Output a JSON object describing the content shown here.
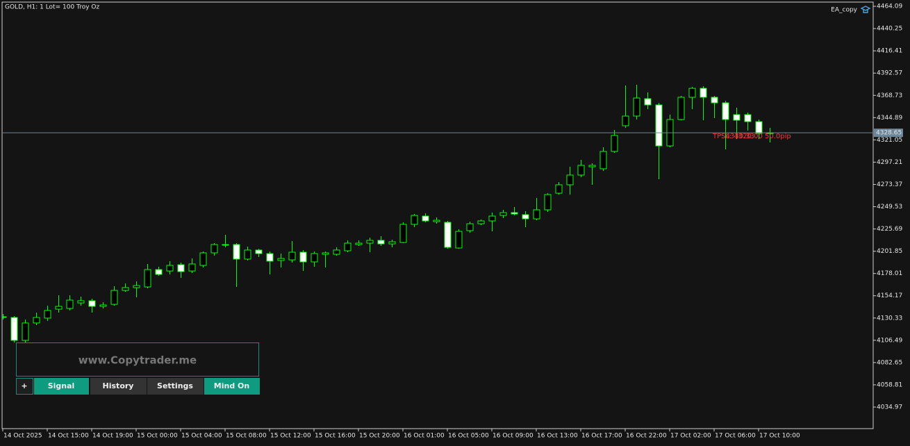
{
  "chart_data": {
    "type": "candlestick",
    "title": "GOLD, H1:  1 Lot= 100 Troy Oz",
    "indicator": "EA_copy",
    "categories": [
      "14 Oct 2025",
      null,
      null,
      null,
      "14 Oct 15:00",
      null,
      null,
      null,
      "14 Oct 19:00",
      null,
      null,
      null,
      "15 Oct 00:00",
      null,
      null,
      null,
      "15 Oct 04:00",
      null,
      null,
      null,
      "15 Oct 08:00",
      null,
      null,
      null,
      "15 Oct 12:00",
      null,
      null,
      null,
      "15 Oct 16:00",
      null,
      null,
      null,
      "15 Oct 20:00",
      null,
      null,
      null,
      "16 Oct 01:00",
      null,
      null,
      null,
      "16 Oct 05:00",
      null,
      null,
      null,
      "16 Oct 09:00",
      null,
      null,
      null,
      "16 Oct 13:00",
      null,
      null,
      null,
      "16 Oct 17:00",
      null,
      null,
      null,
      "16 Oct 22:00",
      null,
      null,
      null,
      "17 Oct 02:00",
      null,
      null,
      null,
      "17 Oct 06:00",
      null,
      null,
      null,
      "17 Oct 10:00",
      null
    ],
    "open": [
      4131.7,
      4130.9,
      4106.4,
      4125.0,
      4130.2,
      4139.8,
      4140.6,
      4146.5,
      4148.8,
      4142.8,
      4145.0,
      4159.9,
      4162.9,
      4163.6,
      4182.2,
      4180.7,
      4187.4,
      4180.7,
      4186.7,
      4200.1,
      4208.3,
      4209.0,
      4193.4,
      4203.1,
      4199.3,
      4191.9,
      4192.6,
      4200.8,
      4190.4,
      4198.6,
      4198.6,
      4202.3,
      4209.0,
      4210.5,
      4213.5,
      4209.7,
      4211.2,
      4230.6,
      4239.5,
      4233.5,
      4232.8,
      4205.3,
      4223.9,
      4231.3,
      4234.3,
      4240.2,
      4243.2,
      4241.0,
      4236.5,
      4246.2,
      4264.0,
      4273.0,
      4283.4,
      4292.3,
      4290.1,
      4308.7,
      4336.2,
      4346.6,
      4365.2,
      4358.5,
      4314.6,
      4342.9,
      4366.7,
      4376.3,
      4366.7,
      4360.7,
      4348.1,
      4348.1,
      4340.6,
      4328.0
    ],
    "high": [
      4134.6,
      4132.4,
      4128.7,
      4136.1,
      4143.6,
      4154.7,
      4154.7,
      4153.2,
      4151.0,
      4147.3,
      4164.4,
      4167.4,
      4169.6,
      4188.2,
      4185.2,
      4191.2,
      4189.7,
      4194.1,
      4201.6,
      4210.5,
      4219.4,
      4210.5,
      4206.8,
      4204.5,
      4201.6,
      4199.3,
      4212.7,
      4203.1,
      4201.6,
      4201.6,
      4206.0,
      4213.5,
      4213.5,
      4216.4,
      4217.9,
      4214.2,
      4232.8,
      4241.7,
      4242.5,
      4238.0,
      4234.3,
      4225.4,
      4233.5,
      4235.8,
      4243.2,
      4246.2,
      4249.2,
      4244.7,
      4258.8,
      4264.0,
      4275.9,
      4292.3,
      4299.7,
      4296.0,
      4313.1,
      4331.7,
      4379.3,
      4380.1,
      4371.9,
      4360.7,
      4348.1,
      4368.2,
      4377.8,
      4378.6,
      4368.2,
      4362.9,
      4355.5,
      4350.3,
      4342.9,
      4333.9
    ],
    "low": [
      4128.7,
      4104.1,
      4104.1,
      4122.7,
      4127.2,
      4136.1,
      4138.4,
      4143.6,
      4136.1,
      4140.6,
      4143.6,
      4158.4,
      4152.5,
      4162.1,
      4175.5,
      4177.0,
      4173.3,
      4178.5,
      4184.5,
      4197.1,
      4206.0,
      4163.6,
      4191.9,
      4195.6,
      4177.0,
      4184.5,
      4189.7,
      4180.7,
      4185.2,
      4184.5,
      4197.1,
      4200.8,
      4207.5,
      4200.8,
      4207.5,
      4206.0,
      4210.5,
      4227.6,
      4232.8,
      4231.3,
      4204.5,
      4204.5,
      4221.6,
      4229.8,
      4223.1,
      4237.3,
      4240.2,
      4227.6,
      4235.0,
      4244.0,
      4262.5,
      4262.5,
      4281.1,
      4273.0,
      4287.8,
      4307.2,
      4333.9,
      4342.9,
      4354.0,
      4278.9,
      4313.1,
      4342.1,
      4354.0,
      4342.1,
      4344.4,
      4310.9,
      4322.0,
      4331.0,
      4322.0,
      4318.3
    ],
    "close": [
      4131.7,
      4106.4,
      4125.0,
      4130.9,
      4138.4,
      4142.8,
      4149.5,
      4148.8,
      4142.8,
      4144.3,
      4159.9,
      4162.9,
      4165.1,
      4182.2,
      4177.0,
      4186.7,
      4180.0,
      4188.2,
      4200.1,
      4209.0,
      4209.0,
      4193.4,
      4203.1,
      4199.3,
      4191.2,
      4194.1,
      4200.8,
      4190.4,
      4199.3,
      4200.1,
      4203.1,
      4210.5,
      4210.5,
      4213.5,
      4209.7,
      4212.0,
      4230.6,
      4240.2,
      4234.3,
      4235.0,
      4206.0,
      4223.1,
      4231.3,
      4234.3,
      4239.5,
      4243.2,
      4241.7,
      4236.5,
      4246.2,
      4262.5,
      4273.0,
      4283.4,
      4293.8,
      4293.8,
      4308.7,
      4325.8,
      4346.6,
      4365.9,
      4358.5,
      4314.6,
      4342.9,
      4366.7,
      4376.3,
      4366.7,
      4360.7,
      4342.9,
      4342.1,
      4340.6,
      4328.0,
      4328.6
    ],
    "up_color": "#00ff00",
    "down_fill": "#ffffff",
    "up_fill": "#000000",
    "current_price": 4328.65,
    "price_line_color": "#6b8799",
    "annotations": [
      "TP: 4330.33",
      "SL: 4320.00  50.0pip"
    ],
    "ylim": [
      4011.9,
      4468.6
    ],
    "yticks": [
      4464.09,
      4440.25,
      4416.41,
      4392.57,
      4368.73,
      4344.89,
      4321.05,
      4297.21,
      4273.37,
      4249.53,
      4225.69,
      4201.85,
      4178.01,
      4154.17,
      4130.33,
      4106.49,
      4082.65,
      4058.81,
      4034.97
    ],
    "grid": false
  },
  "panel": {
    "site": "www.Copytrader.me",
    "buttons": [
      "+",
      "Signal",
      "History",
      "Settings",
      "Mind On"
    ]
  }
}
